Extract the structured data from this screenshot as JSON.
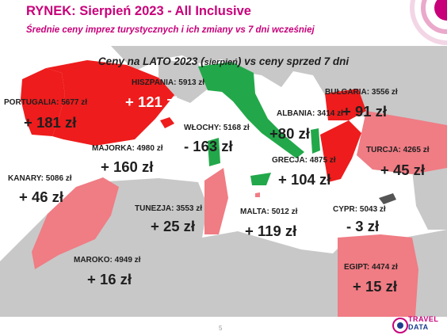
{
  "header": {
    "title": "RYNEK: Sierpień 2023 - All Inclusive",
    "subtitle": "Średnie ceny imprez turystycznych i ich zmiany vs 7 dni wcześniej"
  },
  "map": {
    "title_main": "Ceny na LATO 2023 (",
    "title_small": "sierpień",
    "title_end": ") vs ceny sprzed 7 dni"
  },
  "colors": {
    "increase_strong": "#ee1c1c",
    "increase_light": "#f07c84",
    "decrease": "#22a84a",
    "sea": "#ffffff",
    "land_other": "#c8c8c8",
    "brand": "#c8007a"
  },
  "chart_data": {
    "type": "map",
    "title": "Ceny na LATO 2023 (sierpień) vs ceny sprzed 7 dni",
    "unit": "zł",
    "destinations": [
      {
        "name": "PORTUGALIA",
        "price": 5677,
        "label": "PORTUGALIA: 5677 zł",
        "change": 181,
        "change_label": "+ 181 zł"
      },
      {
        "name": "HISZPANIA",
        "price": 5913,
        "label": "HISZPANIA: 5913 zł",
        "change": 121,
        "change_label": "+ 121 zł"
      },
      {
        "name": "MAJORKA",
        "price": 4980,
        "label": "MAJORKA: 4980 zł",
        "change": 160,
        "change_label": "+ 160 zł"
      },
      {
        "name": "WŁOCHY",
        "price": 5168,
        "label": "WŁOCHY: 5168 zł",
        "change": -163,
        "change_label": "- 163 zł"
      },
      {
        "name": "ALBANIA",
        "price": 3414,
        "label": "ALBANIA: 3414 zł",
        "change": 80,
        "change_label": "+80 zł"
      },
      {
        "name": "BUŁGARIA",
        "price": 3556,
        "label": "BUŁGARIA: 3556 zł",
        "change": 91,
        "change_label": "+ 91 zł"
      },
      {
        "name": "TURCJA",
        "price": 4265,
        "label": "TURCJA: 4265 zł",
        "change": 45,
        "change_label": "+ 45 zł"
      },
      {
        "name": "GRECJA",
        "price": 4875,
        "label": "GRECJA: 4875 zł",
        "change": 104,
        "change_label": "+ 104 zł"
      },
      {
        "name": "KANARY",
        "price": 5086,
        "label": "KANARY: 5086 zł",
        "change": 46,
        "change_label": "+ 46 zł"
      },
      {
        "name": "TUNEZJA",
        "price": 3553,
        "label": "TUNEZJA: 3553 zł",
        "change": 25,
        "change_label": "+ 25 zł"
      },
      {
        "name": "MALTA",
        "price": 5012,
        "label": "MALTA: 5012 zł",
        "change": 119,
        "change_label": "+ 119 zł"
      },
      {
        "name": "CYPR",
        "price": 5043,
        "label": "CYPR: 5043 zł",
        "change": -3,
        "change_label": "- 3 zł"
      },
      {
        "name": "MAROKO",
        "price": 4949,
        "label": "MAROKO: 4949 zł",
        "change": 16,
        "change_label": "+ 16 zł"
      },
      {
        "name": "EGIPT",
        "price": 4474,
        "label": "EGIPT: 4474 zł",
        "change": 15,
        "change_label": "+ 15 zł"
      }
    ]
  },
  "footer": {
    "page_number": "5",
    "logo_line1": "TRAVEL",
    "logo_line2": "DATA"
  }
}
